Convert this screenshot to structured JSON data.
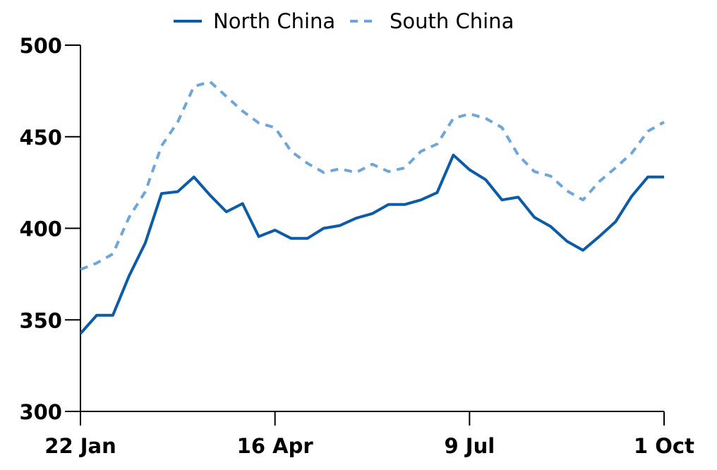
{
  "chart_data": {
    "type": "line",
    "title": "",
    "xlabel": "",
    "ylabel": "",
    "ylim": [
      300,
      500
    ],
    "yticks": [
      300,
      350,
      400,
      450,
      500
    ],
    "xtick_labels": [
      "22 Jan",
      "16 Apr",
      "9 Jul",
      "1 Oct"
    ],
    "xtick_index": [
      0,
      12,
      24,
      36
    ],
    "legend_position": "top",
    "series": [
      {
        "name": "North China",
        "style": "solid",
        "color": "#0a5ca8",
        "values": [
          342.5,
          352.5,
          352.5,
          374,
          392,
          419,
          420,
          428,
          418,
          409,
          413.5,
          395.5,
          399,
          394.5,
          394.5,
          400,
          401.5,
          405.5,
          408,
          413,
          413,
          415.5,
          419.5,
          440,
          432,
          426.5,
          415.5,
          417,
          406,
          401,
          393,
          388,
          395.5,
          403.5,
          417.5,
          428,
          428
        ]
      },
      {
        "name": "South China",
        "style": "dashed",
        "color": "#6ea6da",
        "values": [
          377.5,
          381,
          386,
          406,
          420,
          445,
          458,
          477.5,
          480,
          472,
          464,
          457.5,
          455,
          442,
          435.5,
          430.5,
          432.5,
          430.5,
          435,
          431,
          433,
          442,
          446,
          460,
          462.5,
          460,
          455,
          440,
          431,
          428.5,
          420.5,
          415.5,
          425.5,
          433,
          441,
          453,
          458
        ]
      }
    ]
  }
}
